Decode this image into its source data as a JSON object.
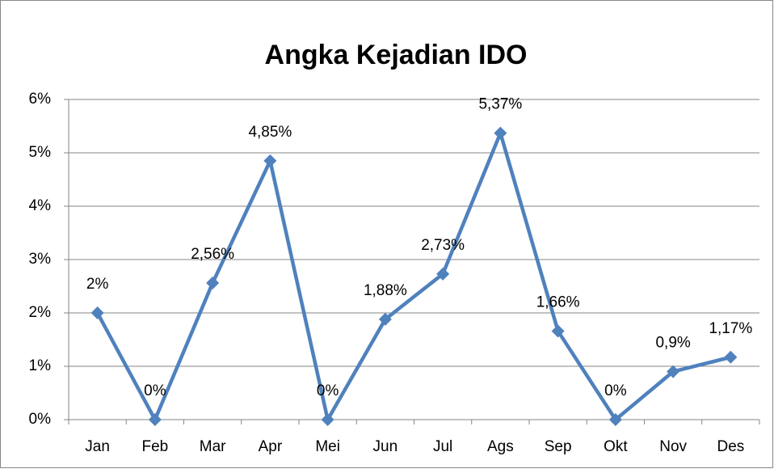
{
  "chart_data": {
    "type": "line",
    "title": "Angka Kejadian IDO",
    "categories": [
      "Jan",
      "Feb",
      "Mar",
      "Apr",
      "Mei",
      "Jun",
      "Jul",
      "Ags",
      "Sep",
      "Okt",
      "Nov",
      "Des"
    ],
    "series": [
      {
        "name": "Angka Kejadian IDO",
        "color": "#4f81bd",
        "values": [
          2,
          0,
          2.56,
          4.85,
          0,
          1.88,
          2.73,
          5.37,
          1.66,
          0,
          0.9,
          1.17
        ],
        "value_labels": [
          "2%",
          "0%",
          "2,56%",
          "4,85%",
          "0%",
          "1,88%",
          "2,73%",
          "5,37%",
          "1,66%",
          "0%",
          "0,9%",
          "1,17%"
        ]
      }
    ],
    "ylim": [
      0,
      6
    ],
    "yticks": [
      {
        "value": 0,
        "label": "0%"
      },
      {
        "value": 1,
        "label": "1%"
      },
      {
        "value": 2,
        "label": "2%"
      },
      {
        "value": 3,
        "label": "3%"
      },
      {
        "value": 4,
        "label": "4%"
      },
      {
        "value": 5,
        "label": "5%"
      },
      {
        "value": 6,
        "label": "6%"
      }
    ],
    "grid": true
  }
}
